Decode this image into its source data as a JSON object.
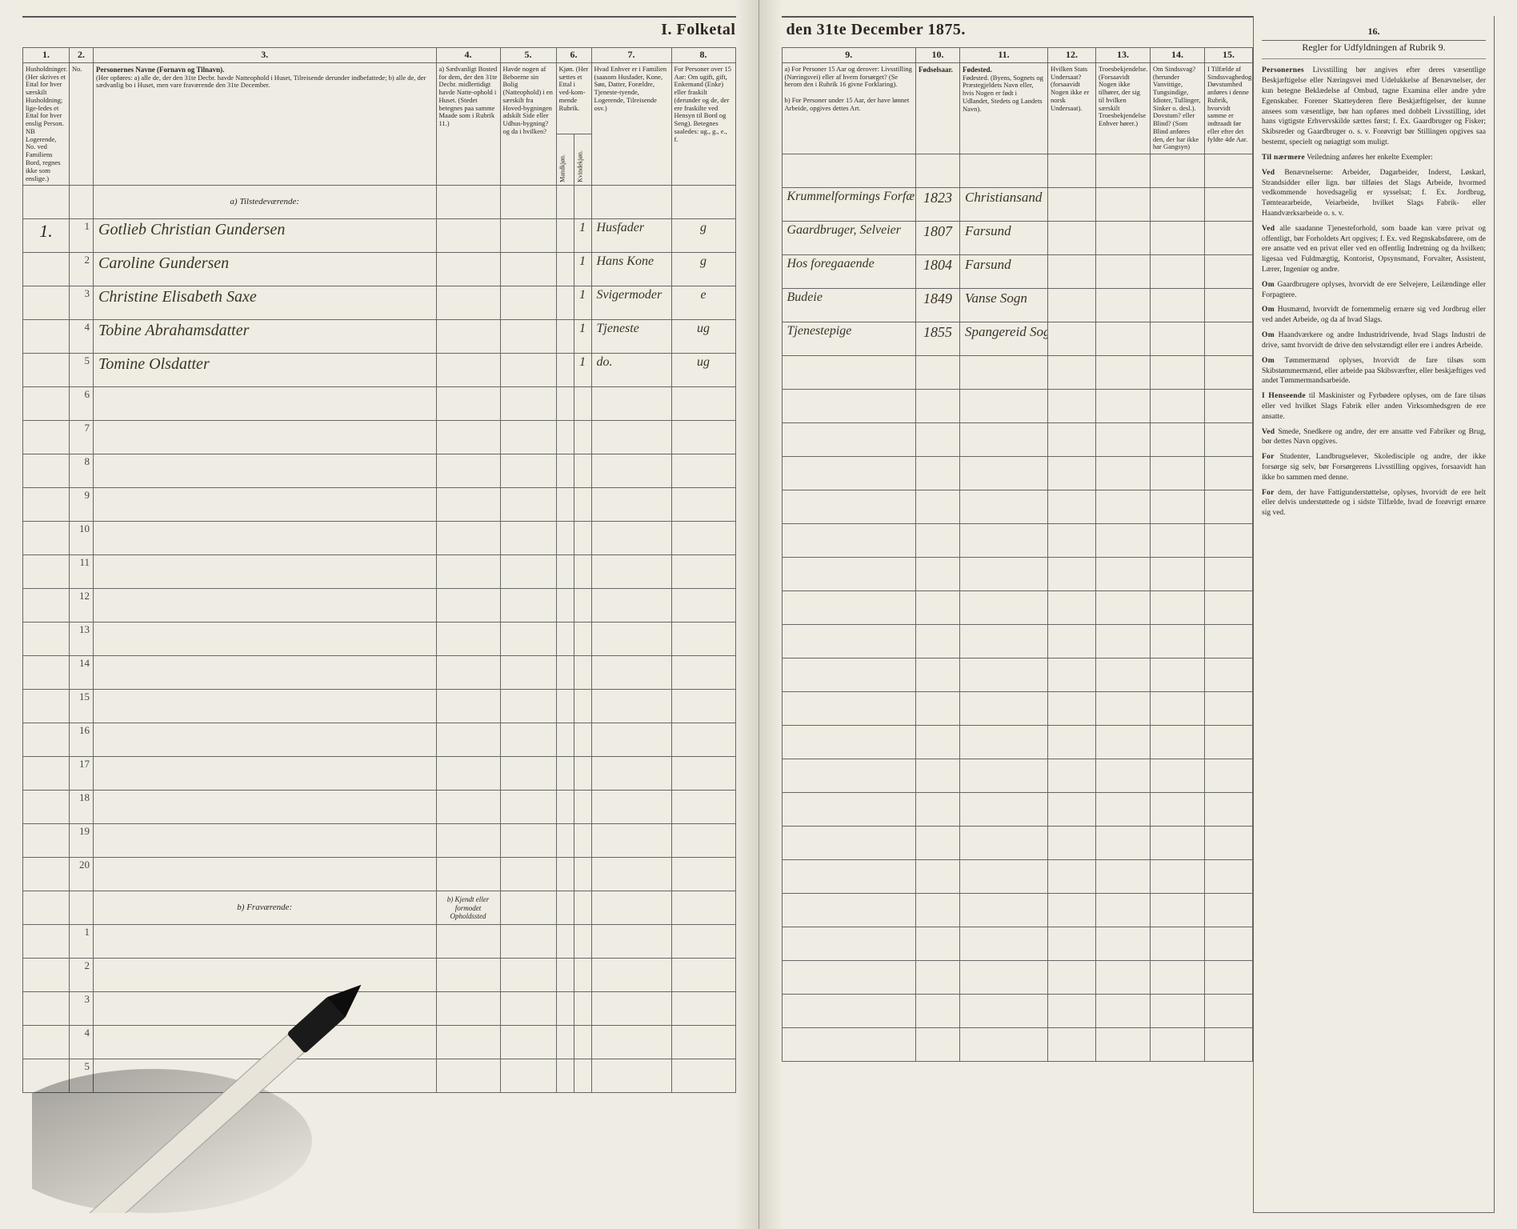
{
  "title_left": "I. Folketal",
  "title_right": "den 31te December 1875.",
  "left_columns": {
    "c1": "1.",
    "c2": "2.",
    "c3": "3.",
    "c4": "4.",
    "c5": "5.",
    "c6": "6.",
    "c7": "7.",
    "c8": "8."
  },
  "right_columns": {
    "c9": "9.",
    "c10": "10.",
    "c11": "11.",
    "c12": "12.",
    "c13": "13.",
    "c14": "14.",
    "c15": "15.",
    "c16": "16."
  },
  "left_headers": {
    "h1": "Husholdninger. (Her skrives et Ettal for hver særskilt Husholdning; lige-ledes et Ettal for hver enslig Person. NB Logerende, No. ved Familiens Bord, regnes ikke som enslige.)",
    "h2": "No.",
    "h3_title": "Personernes Navne (Fornavn og Tilnavn).",
    "h3_sub": "(Her opføres: a) alle de, der den 31te Decbr. havde Natteophold i Huset, Tilreisende derunder indbefattede; b) alle de, der sædvanlig bo i Huset, men vare fraværende den 31te December.",
    "h4": "a) Sædvanligt Bosted for dem, der den 31te Decbr. midlertidigt havde Natte-ophold i Huset. (Stedet betegnes paa samme Maade som i Rubrik 11.)",
    "h5": "Havde nogen af Beboerne sin Bolig (Natteophold) i en særskilt fra Hoved-bygningen adskilt Side eller Udhus-bygning? og da i hvilken?",
    "h6": "Kjøn. (Her sættes et Ettal i ved-kom-mende Rubrik.",
    "h6a": "Mandkjøn.",
    "h6b": "Kvindekjøn.",
    "h7": "Hvad Enhver er i Familien (saasom Husfader, Kone, Søn, Datter, Forældre, Tjeneste-tyende, Logerende, Tilreisende osv.)",
    "h8": "For Personer over 15 Aar: Om ugift, gift, Enkemand (Enke) eller fraskilt (derunder og de, der ere fraskilte ved Hensyn til Bord og Seng). Betegnes saaledes: ug., g., e., f."
  },
  "right_headers": {
    "h9a": "a) For Personer 15 Aar og derover: Livsstilling (Næringsvei) eller af hvem forsørget? (Se herom den i Rubrik 16 givne Forklaring).",
    "h9b": "b) For Personer under 15 Aar, der have lønnet Arbeide, opgives dettes Art.",
    "h10": "Fødselsaar.",
    "h11": "Fødested. (Byens, Sognets og Præstegjeldets Navn eller, hvis Nogen er født i Udlandet, Stedets og Landets Navn).",
    "h12": "Hvilken Stats Undersaat? (forsaavidt Nogen ikke er norsk Undersaat).",
    "h13": "Troesbekjendelse. (Forsaavidt Nogen ikke tilhører, der sig til hvilken særskilt Troesbekjendelse Enhver hører.)",
    "h14": "Om Sindssvag? (herunder Vanvittige, Tungsindige, Idioter, Tullinger, Sinker o. desl.). Dovstum? eller Blind? (Som Blind anføres den, der har ikke har Gangsyn)",
    "h15": "I Tilfælde af Sindssvaghedog Døvstumhed anføres i denne Rubrik, hvorvidt samme er indtraadt før eller efter det fyldte 4de Aar."
  },
  "section_a": "a) Tilstedeværende:",
  "section_b": "b) Fraværende:",
  "section_b_note": "b) Kjendt eller formodet Opholdssted",
  "instructions_title": "Regler for Udfyldningen af Rubrik 9.",
  "instructions_paras": [
    "Personernes Livsstilling bør angives efter deres væsentlige Beskjæftigelse eller Næringsvei med Udelukkelse af Benævnelser, der kun betegne Beklædelse af Ombud, tagne Examina eller andre ydre Egenskaber. Forener Skatteyderen flere Beskjæftigelser, der kunne ansees som væsentlige, bør han opføres med dobbelt Livsstilling, idet hans vigtigste Erhvervskilde sættes først; f. Ex. Gaardbruger og Fisker; Skibsreder og Gaardbruger o. s. v. Forøvrigt bør Stillingen opgives saa bestemt, specielt og nøiagtigt som muligt.",
    "Til nærmere Veiledning anføres her enkelte Exempler:",
    "Ved Benævnelserne: Arbeider, Dagarbeider, Inderst, Løskarl, Strandsidder eller lign. bør tilføies det Slags Arbeide, hvormed vedkommende hovedsagelig er sysselsat; f. Ex. Jordbrug, Tømteararbeide, Veiarbeide, hvilket Slags Fabrik- eller Haandværksarbeide o. s. v.",
    "Ved alle saadanne Tjenesteforhold, som baade kan være privat og offentligt, bør Forholdets Art opgives; f. Ex. ved Regnskabsførere, om de ere ansatte ved en privat eller ved en offentlig Indretning og da hvilken; ligesaa ved Fuldmægtig, Kontorist, Opsynsmand, Forvalter, Assistent, Lærer, Ingeniør og andre.",
    "Om Gaardbrugere oplyses, hvorvidt de ere Selvejere, Leilændinge eller Forpagtere.",
    "Om Husmænd, hvorvidt de fornemmelig ernære sig ved Jordbrug eller ved andet Arbeide, og da af hvad Slags.",
    "Om Haandværkere og andre Industridrivende, hvad Slags Industri de drive, samt hvorvidt de drive den selvstændigt eller ere i andres Arbeide.",
    "Om Tømmermænd oplyses, hvorvidt de fare tilsøs som Skibstømmermænd, eller arbeide paa Skibsværfter, eller beskjæftiges ved andet Tømmermandsarbeide.",
    "I Henseende til Maskinister og Fyrbødere oplyses, om de fare tilsøs eller ved hvilket Slags Fabrik eller anden Virksomhedsgren de ere ansatte.",
    "Ved Smede, Snedkere og andre, der ere ansatte ved Fabriker og Brug, bør dettes Navn opgives.",
    "For Studenter, Landbrugselever, Skoledisciple og andre, der ikke forsørge sig selv, bør Forsørgerens Livsstilling opgives, forsaavidt han ikke bo sammen med denne.",
    "For dem, der have Fattigunderstøttelse, oplyses, hvorvidt de ere helt eller delvis understøttede og i sidste Tilfælde, hvad de forøvrigt ernære sig ved."
  ],
  "rows": [
    {
      "hh": "1.",
      "n": "1",
      "name": "Gotlieb Christian Gundersen",
      "k": "1",
      "rel": "Husfader",
      "ms": "g",
      "occ": "Krummelformings Forfærderer, Gartner og Selveier",
      "yr": "1823",
      "place": "Christiansand"
    },
    {
      "hh": "",
      "n": "2",
      "name": "Caroline Gundersen",
      "k": "1",
      "rel": "Hans Kone",
      "ms": "g",
      "occ": "Gaardbruger, Selveier",
      "yr": "1807",
      "place": "Farsund"
    },
    {
      "hh": "",
      "n": "3",
      "name": "Christine Elisabeth Saxe",
      "k": "1",
      "rel": "Svigermoder",
      "ms": "e",
      "occ": "Hos foregaaende",
      "yr": "1804",
      "place": "Farsund"
    },
    {
      "hh": "",
      "n": "4",
      "name": "Tobine Abrahamsdatter",
      "k": "1",
      "rel": "Tjeneste",
      "ms": "ug",
      "occ": "Budeie",
      "yr": "1849",
      "place": "Vanse Sogn"
    },
    {
      "hh": "",
      "n": "5",
      "name": "Tomine Olsdatter",
      "k": "1",
      "rel": "do.",
      "ms": "ug",
      "occ": "Tjenestepige",
      "yr": "1855",
      "place": "Spangereid Sogn og Vanse Prgd."
    }
  ],
  "empty_left": [
    "6",
    "7",
    "8",
    "9",
    "10",
    "11",
    "12",
    "13",
    "14",
    "15",
    "16",
    "17",
    "18",
    "19",
    "20"
  ],
  "empty_b": [
    "1",
    "2",
    "3",
    "4",
    "5"
  ],
  "colors": {
    "paper": "#efece3",
    "ink": "#2a2520",
    "rule": "#666666",
    "hand": "#3a3226"
  }
}
